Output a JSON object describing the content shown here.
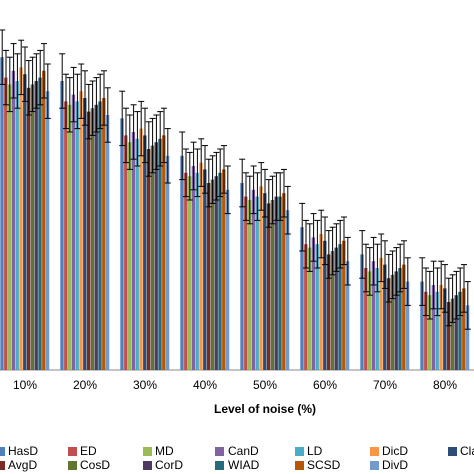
{
  "chart_data": {
    "type": "bar",
    "x_label": "Level of noise (%)",
    "categories": [
      "10%",
      "20%",
      "30%",
      "40%",
      "50%",
      "60%",
      "70%",
      "80%"
    ],
    "ylim": [
      0,
      100
    ],
    "series": [
      {
        "name": "HasD",
        "color": "#4f81bd",
        "values": [
          92,
          85,
          74,
          63,
          55,
          42,
          34,
          26
        ],
        "errors": [
          8,
          8,
          8,
          7,
          7,
          7,
          7,
          7
        ]
      },
      {
        "name": "ED",
        "color": "#c0504d",
        "values": [
          86,
          79,
          69,
          58,
          51,
          37,
          30,
          23
        ],
        "errors": [
          8,
          8,
          8,
          7,
          7,
          7,
          7,
          7
        ]
      },
      {
        "name": "MD",
        "color": "#9bbb59",
        "values": [
          84,
          78,
          67,
          57,
          50,
          36,
          29,
          22
        ],
        "errors": [
          8,
          8,
          8,
          7,
          7,
          7,
          7,
          7
        ]
      },
      {
        "name": "CanD",
        "color": "#8064a2",
        "values": [
          88,
          81,
          70,
          60,
          53,
          39,
          32,
          25
        ],
        "errors": [
          8,
          8,
          8,
          7,
          7,
          7,
          7,
          7
        ]
      },
      {
        "name": "LD",
        "color": "#4bacc6",
        "values": [
          85,
          79,
          68,
          58,
          51,
          37,
          30,
          23
        ],
        "errors": [
          8,
          8,
          8,
          7,
          7,
          7,
          7,
          7
        ]
      },
      {
        "name": "DicD",
        "color": "#f79646",
        "values": [
          89,
          82,
          71,
          61,
          54,
          40,
          33,
          25
        ],
        "errors": [
          8,
          8,
          8,
          7,
          7,
          7,
          7,
          7
        ]
      },
      {
        "name": "Cla",
        "color": "#2c4d75",
        "values": [
          87,
          80,
          69,
          59,
          52,
          38,
          31,
          24
        ],
        "errors": [
          8,
          8,
          8,
          7,
          7,
          7,
          7,
          7
        ]
      },
      {
        "name": "AvgD",
        "color": "#772c2a",
        "values": [
          83,
          76,
          65,
          55,
          49,
          34,
          27,
          20
        ],
        "errors": [
          8,
          8,
          8,
          7,
          7,
          7,
          7,
          7
        ]
      },
      {
        "name": "CosD",
        "color": "#5f7530",
        "values": [
          84,
          77,
          66,
          56,
          50,
          35,
          28,
          21
        ],
        "errors": [
          8,
          8,
          8,
          7,
          7,
          7,
          7,
          7
        ]
      },
      {
        "name": "CorD",
        "color": "#4d3b62",
        "values": [
          85,
          78,
          67,
          57,
          51,
          36,
          29,
          22
        ],
        "errors": [
          8,
          8,
          8,
          7,
          7,
          7,
          7,
          7
        ]
      },
      {
        "name": "WIAD",
        "color": "#276a7c",
        "values": [
          86,
          79,
          68,
          58,
          51,
          37,
          30,
          23
        ],
        "errors": [
          8,
          8,
          8,
          7,
          7,
          7,
          7,
          7
        ]
      },
      {
        "name": "SCSD",
        "color": "#b65708",
        "values": [
          88,
          80,
          69,
          59,
          52,
          38,
          31,
          24
        ],
        "errors": [
          8,
          8,
          8,
          7,
          7,
          7,
          7,
          7
        ]
      },
      {
        "name": "DivD",
        "color": "#729aca",
        "values": [
          82,
          75,
          63,
          53,
          47,
          32,
          26,
          19
        ],
        "errors": [
          8,
          8,
          8,
          7,
          7,
          7,
          7,
          7
        ]
      }
    ]
  }
}
